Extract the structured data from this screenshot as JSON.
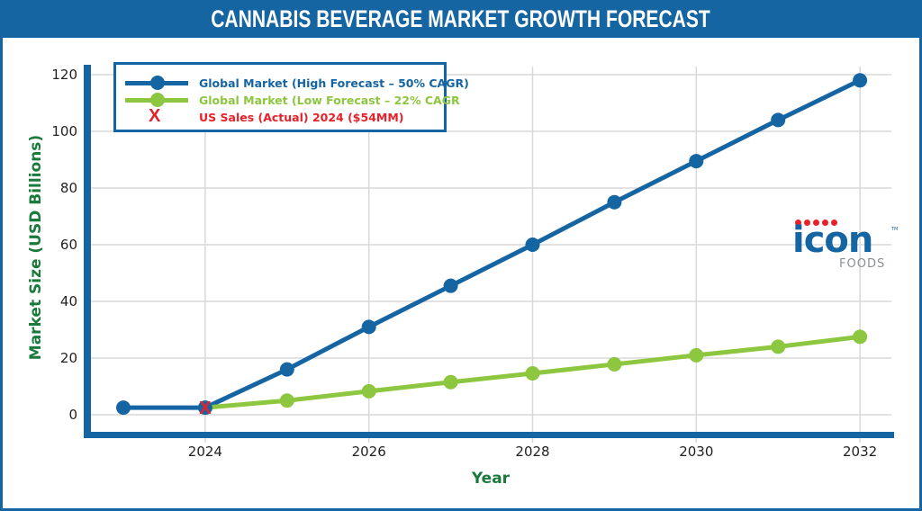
{
  "header": {
    "title": "CANNABIS BEVERAGE MARKET GROWTH FORECAST"
  },
  "colors": {
    "brand_blue": "#1565a3",
    "high_series": "#1565a3",
    "low_series": "#8dc63f",
    "actual_marker": "#e8202a",
    "axis_title": "#1a7a3c",
    "grid": "#d9d9d9",
    "logo_sub": "#8a8f94"
  },
  "chart_data": {
    "type": "line",
    "title": "CANNABIS BEVERAGE MARKET GROWTH FORECAST",
    "xlabel": "Year",
    "ylabel": "Market Size (USD Billions)",
    "x": [
      2023,
      2024,
      2025,
      2026,
      2027,
      2028,
      2029,
      2030,
      2031,
      2032
    ],
    "xlim": [
      2022.5,
      2032.4
    ],
    "ylim": [
      -6,
      124
    ],
    "x_ticks": [
      2024,
      2026,
      2028,
      2030,
      2032
    ],
    "x_tick_labels": [
      "2024",
      "2026",
      "2028",
      "2030",
      "2032"
    ],
    "y_ticks": [
      0,
      20,
      40,
      60,
      80,
      100,
      120
    ],
    "y_tick_labels": [
      "0",
      "20",
      "40",
      "60",
      "80",
      "100",
      "120"
    ],
    "grid": true,
    "legend_position": "top-left",
    "series": [
      {
        "name": "Global Market (High Forecast – 50% CAGR)",
        "color": "#1565a3",
        "x": [
          2023,
          2024,
          2025,
          2026,
          2027,
          2028,
          2029,
          2030,
          2031,
          2032
        ],
        "values": [
          2.5,
          2.5,
          16,
          31,
          45.5,
          60,
          75,
          89.5,
          104,
          118
        ]
      },
      {
        "name": "Global Market (Low Forecast – 22% CAGR",
        "color": "#8dc63f",
        "x": [
          2024,
          2025,
          2026,
          2027,
          2028,
          2029,
          2030,
          2031,
          2032
        ],
        "values": [
          2.5,
          5,
          8.3,
          11.5,
          14.6,
          17.8,
          21,
          24,
          27.5
        ]
      }
    ],
    "markers": [
      {
        "name": "US Sales (Actual) 2024 ($54MM)",
        "x": 2024,
        "y": 2.5,
        "symbol": "x",
        "color": "#e8202a"
      }
    ]
  },
  "legend": {
    "items": [
      {
        "label": "Global Market (High Forecast – 50% CAGR)",
        "color": "#1565a3",
        "type": "line-dot"
      },
      {
        "label": "Global Market (Low Forecast – 22% CAGR",
        "color": "#8dc63f",
        "type": "line-dot"
      },
      {
        "label": "US Sales (Actual) 2024 ($54MM)",
        "color": "#e8202a",
        "type": "x"
      }
    ]
  },
  "logo": {
    "word": "icon",
    "sub": "FOODS",
    "tm": "TM",
    "dot_count": 5
  }
}
